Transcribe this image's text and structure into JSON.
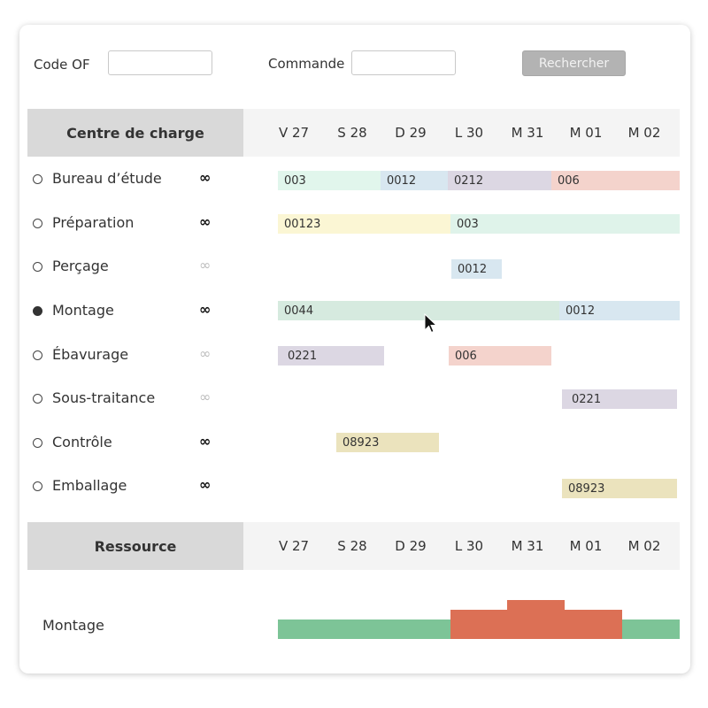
{
  "search": {
    "code_of_label": "Code OF",
    "code_of_value": "",
    "commande_label": "Commande",
    "commande_value": "",
    "button_label": "Rechercher"
  },
  "charge": {
    "header": "Centre de charge",
    "days": [
      "V 27",
      "S 28",
      "D 29",
      "L 30",
      "M 31",
      "M 01",
      "M 02"
    ],
    "rows": [
      {
        "name": "Bureau d’étude",
        "selected": false,
        "infinite_active": true,
        "bars": [
          {
            "label": "003",
            "color": "mint"
          },
          {
            "label": "0012",
            "color": "blue"
          },
          {
            "label": "0212",
            "color": "lav"
          },
          {
            "label": "006",
            "color": "pink"
          }
        ]
      },
      {
        "name": "Préparation",
        "selected": false,
        "infinite_active": true,
        "bars": [
          {
            "label": "00123",
            "color": "yellow"
          },
          {
            "label": "003",
            "color": "lmint"
          }
        ]
      },
      {
        "name": "Perçage",
        "selected": false,
        "infinite_active": false,
        "bars": [
          {
            "label": "0012",
            "color": "blue"
          }
        ]
      },
      {
        "name": "Montage",
        "selected": true,
        "infinite_active": true,
        "bars": [
          {
            "label": "0044",
            "color": "sage"
          },
          {
            "label": "0012",
            "color": "blue"
          }
        ]
      },
      {
        "name": "Ébavurage",
        "selected": false,
        "infinite_active": false,
        "bars": [
          {
            "label": "0221",
            "color": "lav"
          },
          {
            "label": "006",
            "color": "pink"
          }
        ]
      },
      {
        "name": "Sous-traitance",
        "selected": false,
        "infinite_active": false,
        "bars": [
          {
            "label": "0221",
            "color": "lav"
          }
        ]
      },
      {
        "name": "Contrôle",
        "selected": false,
        "infinite_active": true,
        "bars": [
          {
            "label": "08923",
            "color": "khaki"
          }
        ]
      },
      {
        "name": "Emballage",
        "selected": false,
        "infinite_active": true,
        "bars": [
          {
            "label": "08923",
            "color": "khaki"
          }
        ]
      }
    ],
    "infinity_symbol": "∞"
  },
  "resource": {
    "header": "Ressource",
    "days": [
      "V 27",
      "S 28",
      "D 29",
      "L 30",
      "M 31",
      "M 01",
      "M 02"
    ],
    "name": "Montage",
    "capacity_color": "#7dc497",
    "overload_color": "#dc7055",
    "load_levels": [
      1,
      1,
      1,
      1.5,
      2,
      1.5,
      1
    ]
  },
  "icons": {
    "radio": "radio-icon",
    "infinity": "infinity-icon",
    "cursor": "mouse-cursor-icon"
  }
}
